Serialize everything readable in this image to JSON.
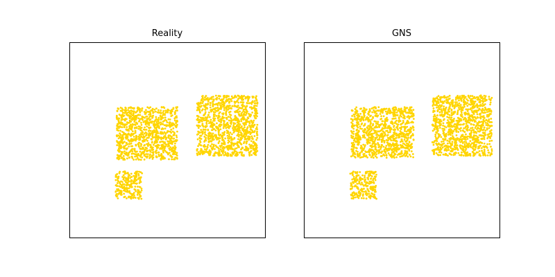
{
  "chart_data": [
    {
      "type": "scatter",
      "title": "Reality",
      "xlim": [
        0,
        1
      ],
      "ylim": [
        0,
        1
      ],
      "axes_ticks": false,
      "grid": false,
      "point_color": "#ffd500",
      "blocks": [
        {
          "name": "block-center",
          "x_range": [
            0.24,
            0.55
          ],
          "y_range": [
            0.4,
            0.67
          ],
          "particles": 1000
        },
        {
          "name": "block-right",
          "x_range": [
            0.65,
            0.96
          ],
          "y_range": [
            0.42,
            0.73
          ],
          "particles": 1100
        },
        {
          "name": "block-small",
          "x_range": [
            0.235,
            0.37
          ],
          "y_range": [
            0.2,
            0.34
          ],
          "particles": 220
        }
      ]
    },
    {
      "type": "scatter",
      "title": "GNS",
      "xlim": [
        0,
        1
      ],
      "ylim": [
        0,
        1
      ],
      "axes_ticks": false,
      "grid": false,
      "point_color": "#ffd500",
      "blocks": [
        {
          "name": "block-center",
          "x_range": [
            0.24,
            0.56
          ],
          "y_range": [
            0.41,
            0.67
          ],
          "particles": 1000
        },
        {
          "name": "block-right",
          "x_range": [
            0.655,
            0.96
          ],
          "y_range": [
            0.42,
            0.73
          ],
          "particles": 1100
        },
        {
          "name": "block-small",
          "x_range": [
            0.235,
            0.37
          ],
          "y_range": [
            0.2,
            0.34
          ],
          "particles": 220
        }
      ]
    }
  ]
}
